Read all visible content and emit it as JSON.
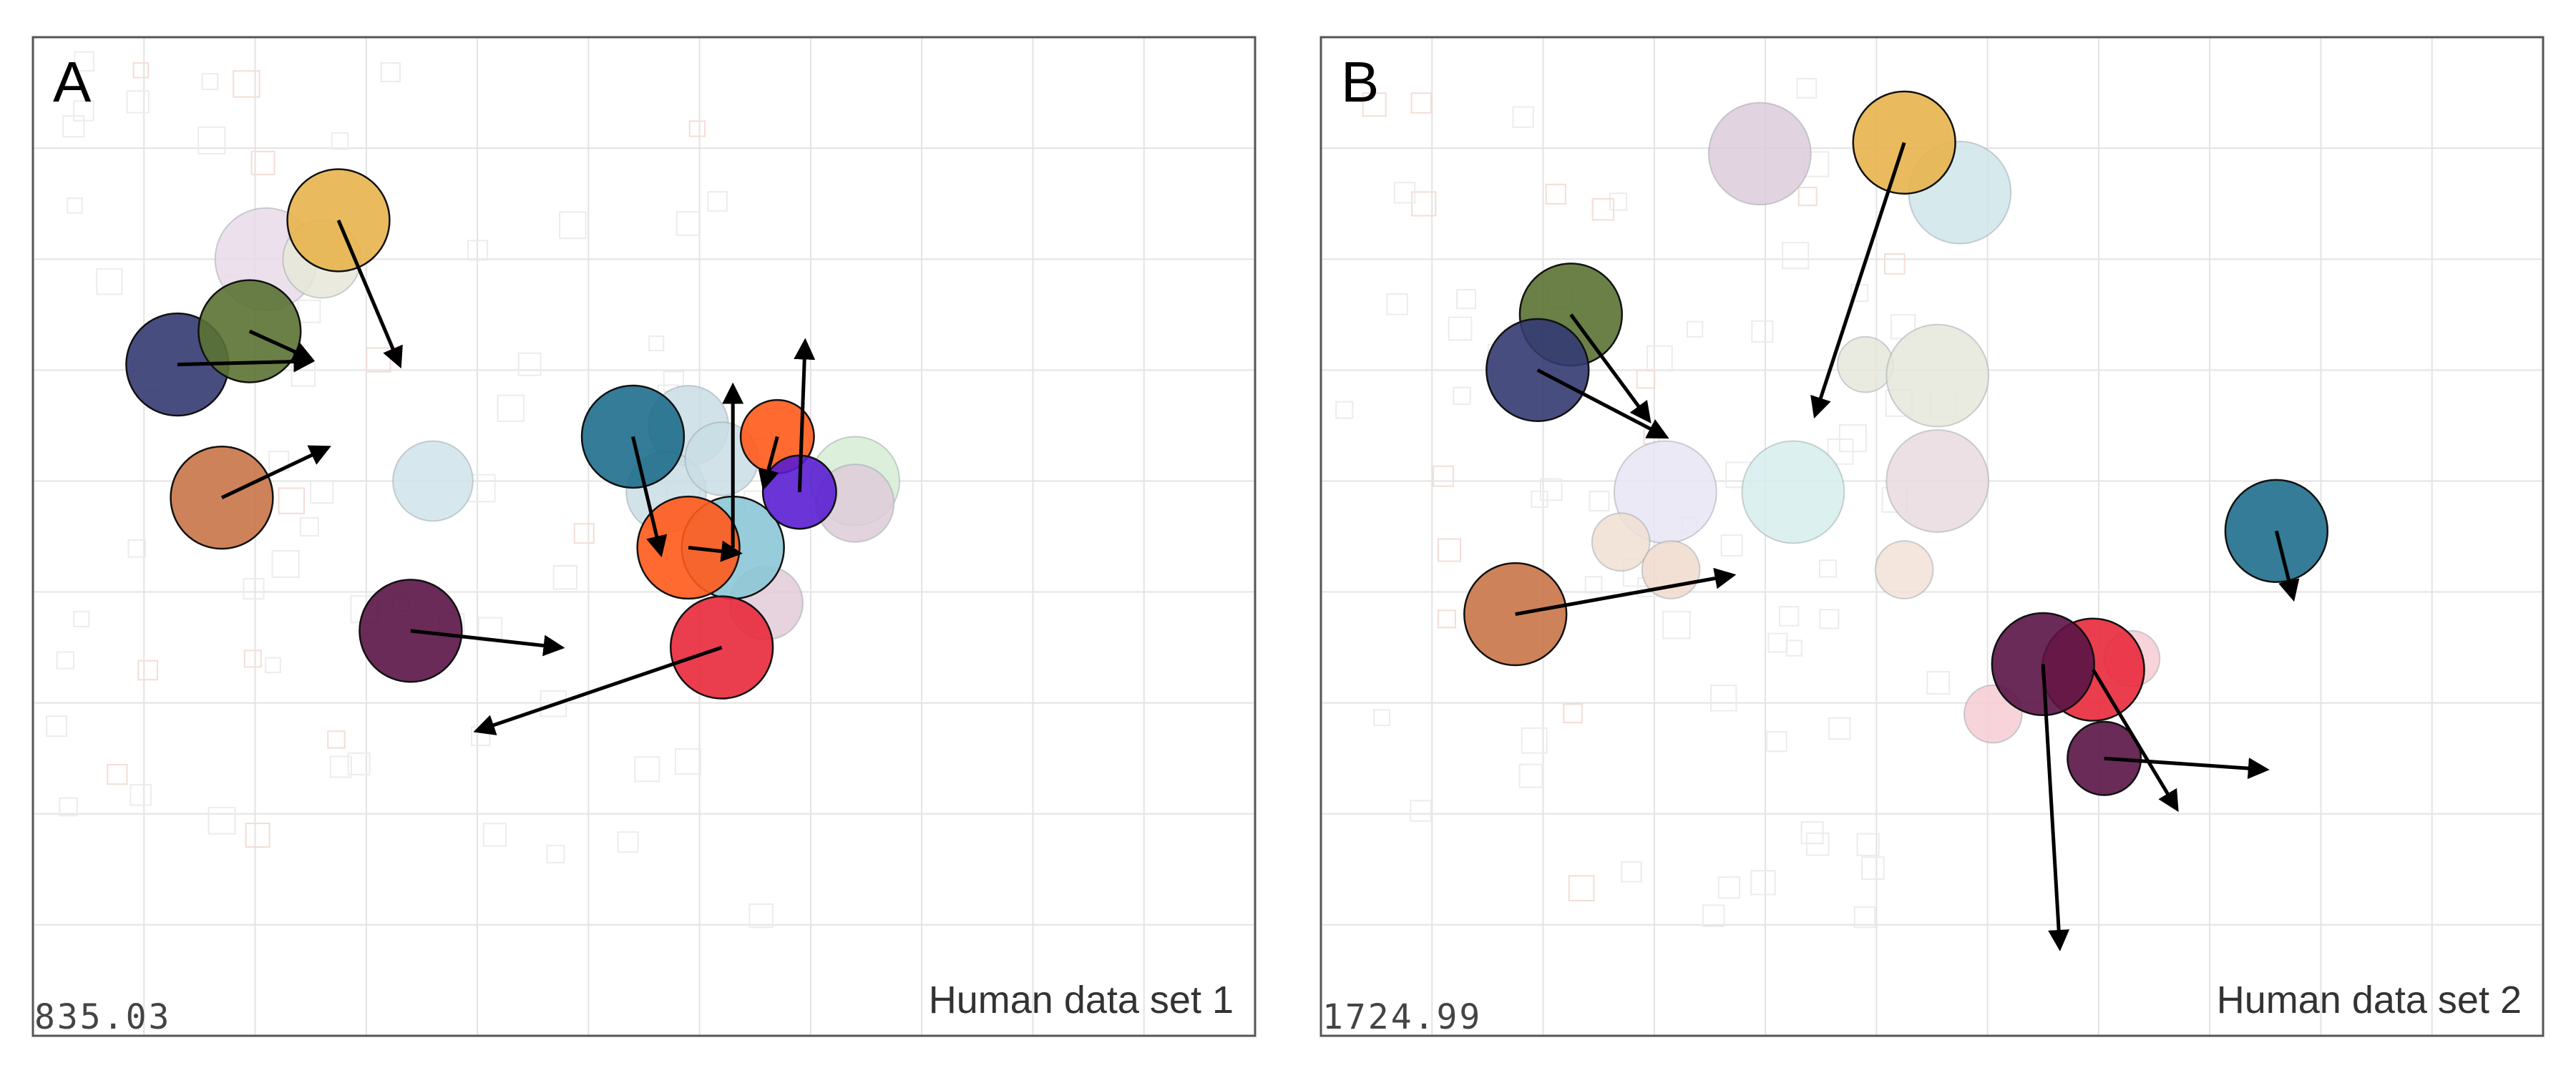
{
  "chart_data": [
    {
      "type": "scatter",
      "panel_letter": "A",
      "caption": "Human data set 1",
      "value_label": "835.03",
      "xlim": [
        0,
        11
      ],
      "ylim": [
        0,
        9
      ],
      "grid": true,
      "faded_points": [
        {
          "x": 3.6,
          "y": 5.0,
          "r": 0.36,
          "color": "#cfe3ea"
        },
        {
          "x": 5.9,
          "y": 5.5,
          "r": 0.36,
          "color": "#c9dde5"
        },
        {
          "x": 5.7,
          "y": 4.9,
          "r": 0.36,
          "color": "#c9dde5"
        },
        {
          "x": 6.2,
          "y": 5.2,
          "r": 0.33,
          "color": "#c9dde5"
        },
        {
          "x": 7.4,
          "y": 5.0,
          "r": 0.4,
          "color": "#d5ecd3"
        },
        {
          "x": 7.4,
          "y": 4.8,
          "r": 0.35,
          "color": "#decbd8"
        },
        {
          "x": 6.6,
          "y": 3.9,
          "r": 0.33,
          "color": "#e2cbd8"
        },
        {
          "x": 2.1,
          "y": 7.0,
          "r": 0.46,
          "color": "#e9dbe9"
        },
        {
          "x": 2.6,
          "y": 7.0,
          "r": 0.35,
          "color": "#e6e7d8"
        }
      ],
      "points": [
        {
          "x": 5.4,
          "y": 5.4,
          "r": 0.46,
          "color": "#1e6e8c",
          "dx": 0.25,
          "dy": -1.05
        },
        {
          "x": 6.3,
          "y": 4.4,
          "r": 0.46,
          "color": "#8cc7d6",
          "dx": 0.0,
          "dy": 1.45
        },
        {
          "x": 5.9,
          "y": 4.4,
          "r": 0.46,
          "color": "#ff5a19",
          "dx": 0.45,
          "dy": -0.05
        },
        {
          "x": 6.7,
          "y": 5.4,
          "r": 0.33,
          "color": "#ff5a19",
          "dx": -0.12,
          "dy": -0.45
        },
        {
          "x": 6.9,
          "y": 4.9,
          "r": 0.33,
          "color": "#5a1ed2",
          "dx": 0.05,
          "dy": 1.35
        },
        {
          "x": 6.2,
          "y": 3.5,
          "r": 0.46,
          "color": "#e8293b",
          "dx": -2.2,
          "dy": -0.75
        },
        {
          "x": 3.4,
          "y": 3.65,
          "r": 0.46,
          "color": "#5a1446",
          "dx": 1.35,
          "dy": -0.15
        },
        {
          "x": 1.7,
          "y": 4.85,
          "r": 0.46,
          "color": "#c97447",
          "dx": 0.95,
          "dy": 0.45
        },
        {
          "x": 1.3,
          "y": 6.05,
          "r": 0.46,
          "color": "#343a72",
          "dx": 1.2,
          "dy": 0.03
        },
        {
          "x": 1.95,
          "y": 6.35,
          "r": 0.46,
          "color": "#5a7233",
          "dx": 0.55,
          "dy": -0.25
        },
        {
          "x": 2.75,
          "y": 7.35,
          "r": 0.46,
          "color": "#e8b44c",
          "dx": 0.55,
          "dy": -1.3
        }
      ]
    },
    {
      "type": "scatter",
      "panel_letter": "B",
      "caption": "Human data set 2",
      "value_label": "1724.99",
      "xlim": [
        0,
        11
      ],
      "ylim": [
        0,
        9
      ],
      "grid": true,
      "faded_points": [
        {
          "x": 3.95,
          "y": 7.95,
          "r": 0.46,
          "color": "#dccbdb"
        },
        {
          "x": 5.75,
          "y": 7.6,
          "r": 0.46,
          "color": "#cfe5ea"
        },
        {
          "x": 4.9,
          "y": 6.05,
          "r": 0.25,
          "color": "#e5e7da"
        },
        {
          "x": 5.55,
          "y": 5.95,
          "r": 0.46,
          "color": "#e5e8da"
        },
        {
          "x": 4.25,
          "y": 4.9,
          "r": 0.46,
          "color": "#d6eded"
        },
        {
          "x": 3.1,
          "y": 4.9,
          "r": 0.46,
          "color": "#e6e5f3"
        },
        {
          "x": 5.55,
          "y": 5.0,
          "r": 0.46,
          "color": "#eadbdf"
        },
        {
          "x": 2.7,
          "y": 4.45,
          "r": 0.26,
          "color": "#f1dfd2"
        },
        {
          "x": 3.15,
          "y": 4.2,
          "r": 0.26,
          "color": "#f0dbcc"
        },
        {
          "x": 5.25,
          "y": 4.2,
          "r": 0.26,
          "color": "#f2e2d7"
        },
        {
          "x": 7.3,
          "y": 3.4,
          "r": 0.25,
          "color": "#f6ccd3"
        },
        {
          "x": 6.05,
          "y": 2.9,
          "r": 0.26,
          "color": "#f6ccd3"
        }
      ],
      "points": [
        {
          "x": 5.25,
          "y": 8.05,
          "r": 0.46,
          "color": "#e8b44c",
          "dx": -0.8,
          "dy": -2.45
        },
        {
          "x": 2.25,
          "y": 6.5,
          "r": 0.46,
          "color": "#5a7233",
          "dx": 0.7,
          "dy": -0.95
        },
        {
          "x": 1.95,
          "y": 6.0,
          "r": 0.46,
          "color": "#343a72",
          "dx": 1.15,
          "dy": -0.6
        },
        {
          "x": 1.75,
          "y": 3.8,
          "r": 0.46,
          "color": "#c97447",
          "dx": 1.95,
          "dy": 0.35
        },
        {
          "x": 8.6,
          "y": 4.55,
          "r": 0.46,
          "color": "#1e6e8c",
          "dx": 0.15,
          "dy": -0.6
        },
        {
          "x": 6.95,
          "y": 3.3,
          "r": 0.46,
          "color": "#e8293b",
          "dx": 0.75,
          "dy": -1.25
        },
        {
          "x": 6.5,
          "y": 3.35,
          "r": 0.46,
          "color": "#5a1446",
          "dx": 0.15,
          "dy": -2.55
        },
        {
          "x": 7.05,
          "y": 2.5,
          "r": 0.33,
          "color": "#5a1446",
          "dx": 1.45,
          "dy": -0.1
        }
      ]
    }
  ]
}
